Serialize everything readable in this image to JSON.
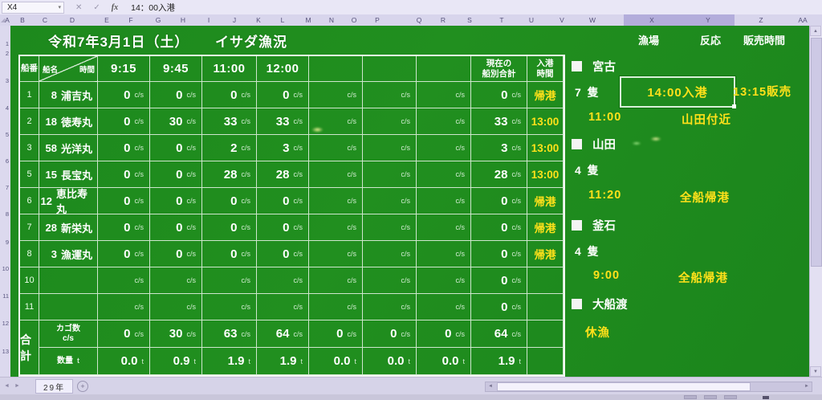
{
  "app": {
    "name_box": "X4",
    "formula_bar": "14：00入港",
    "icons": {
      "dropdown": "▾",
      "cancel": "✕",
      "enter": "✓",
      "fx": "fx",
      "up": "▲",
      "down": "▼",
      "left": "◄",
      "right": "►",
      "select_all": "◢",
      "plus": "+"
    },
    "column_letters": [
      "A",
      "B",
      "C",
      "D",
      "E",
      "F",
      "G",
      "H",
      "I",
      "J",
      "K",
      "L",
      "M",
      "N",
      "O",
      "P",
      "Q",
      "R",
      "S",
      "T",
      "U",
      "V",
      "W",
      "X",
      "Y",
      "Z",
      "AA"
    ],
    "selected_columns": [
      "X",
      "Y"
    ],
    "row_numbers": [
      "1",
      "2",
      "3",
      "4",
      "5",
      "6",
      "7",
      "8",
      "9",
      "10",
      "11",
      "12",
      "13"
    ],
    "sheet_tab": "29年",
    "colors": {
      "sheet_green": "#1f8c1f",
      "accent_yellow": "#ffe11a",
      "grid_white": "#ffffff"
    }
  },
  "title": {
    "date": "令和7年3月1日（土）",
    "report": "イサダ漁況"
  },
  "table": {
    "header": {
      "ship_no": "船番",
      "ship_name": "船名",
      "time": "時間",
      "times": [
        "9:15",
        "9:45",
        "11:00",
        "12:00",
        "",
        "",
        ""
      ],
      "total_lines": [
        "現在の",
        "船別合計"
      ],
      "arrival_lines": [
        "入港",
        "時間"
      ]
    },
    "unit_cs": "c/s",
    "unit_t": "t",
    "rows": [
      {
        "no": "1",
        "boat_no": "8",
        "boat": "浦吉丸",
        "vals": [
          "0",
          "0",
          "0",
          "0",
          "",
          "",
          ""
        ],
        "total": "0",
        "arrival": "帰港"
      },
      {
        "no": "2",
        "boat_no": "18",
        "boat": "徳寿丸",
        "vals": [
          "0",
          "30",
          "33",
          "33",
          "",
          "",
          ""
        ],
        "total": "33",
        "arrival": "13:00"
      },
      {
        "no": "3",
        "boat_no": "58",
        "boat": "光洋丸",
        "vals": [
          "0",
          "0",
          "2",
          "3",
          "",
          "",
          ""
        ],
        "total": "3",
        "arrival": "13:00"
      },
      {
        "no": "5",
        "boat_no": "15",
        "boat": "長宝丸",
        "vals": [
          "0",
          "0",
          "28",
          "28",
          "",
          "",
          ""
        ],
        "total": "28",
        "arrival": "13:00"
      },
      {
        "no": "6",
        "boat_no": "12",
        "boat": "恵比寿丸",
        "vals": [
          "0",
          "0",
          "0",
          "0",
          "",
          "",
          ""
        ],
        "total": "0",
        "arrival": "帰港"
      },
      {
        "no": "7",
        "boat_no": "28",
        "boat": "新栄丸",
        "vals": [
          "0",
          "0",
          "0",
          "0",
          "",
          "",
          ""
        ],
        "total": "0",
        "arrival": "帰港"
      },
      {
        "no": "8",
        "boat_no": "3",
        "boat": "漁運丸",
        "vals": [
          "0",
          "0",
          "0",
          "0",
          "",
          "",
          ""
        ],
        "total": "0",
        "arrival": "帰港"
      },
      {
        "no": "10",
        "boat_no": "",
        "boat": "",
        "vals": [
          "",
          "",
          "",
          "",
          "",
          "",
          ""
        ],
        "total": "0",
        "arrival": ""
      },
      {
        "no": "11",
        "boat_no": "",
        "boat": "",
        "vals": [
          "",
          "",
          "",
          "",
          "",
          "",
          ""
        ],
        "total": "0",
        "arrival": ""
      }
    ],
    "totals": {
      "label": "合計",
      "cage_label_lines": [
        "カゴ数",
        "c/s"
      ],
      "cage_vals": [
        "0",
        "30",
        "63",
        "64",
        "0",
        "0",
        "0"
      ],
      "cage_total": "64",
      "qty_label": "数量",
      "qty_vals": [
        "0.0",
        "0.9",
        "1.9",
        "1.9",
        "0.0",
        "0.0",
        "0.0"
      ],
      "qty_total": "1.9"
    }
  },
  "panel": {
    "col_headers": [
      "漁場",
      "反応",
      "販売時間"
    ],
    "items": [
      {
        "kind": "port",
        "label": "宮古"
      },
      {
        "kind": "count",
        "label": "7 隻"
      },
      {
        "kind": "selected_cell",
        "label": "14:00入港"
      },
      {
        "kind": "sale",
        "label": "13:15販売"
      },
      {
        "kind": "time",
        "label": "11:00"
      },
      {
        "kind": "place",
        "label": "山田付近"
      },
      {
        "kind": "port",
        "label": "山田"
      },
      {
        "kind": "count",
        "label": "4 隻"
      },
      {
        "kind": "time",
        "label": "11:20"
      },
      {
        "kind": "place",
        "label": "全船帰港"
      },
      {
        "kind": "port",
        "label": "釜石"
      },
      {
        "kind": "count",
        "label": "4 隻"
      },
      {
        "kind": "time",
        "label": "9:00"
      },
      {
        "kind": "place",
        "label": "全船帰港"
      },
      {
        "kind": "port",
        "label": "大船渡"
      },
      {
        "kind": "status",
        "label": "休漁"
      }
    ]
  }
}
